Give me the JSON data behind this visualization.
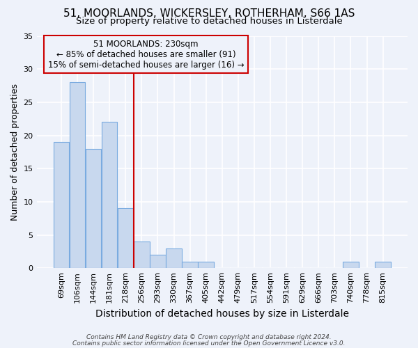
{
  "title1": "51, MOORLANDS, WICKERSLEY, ROTHERHAM, S66 1AS",
  "title2": "Size of property relative to detached houses in Listerdale",
  "xlabel": "Distribution of detached houses by size in Listerdale",
  "ylabel": "Number of detached properties",
  "footnote1": "Contains HM Land Registry data © Crown copyright and database right 2024.",
  "footnote2": "Contains public sector information licensed under the Open Government Licence v3.0.",
  "annotation_line1": "51 MOORLANDS: 230sqm",
  "annotation_line2": "← 85% of detached houses are smaller (91)",
  "annotation_line3": "15% of semi-detached houses are larger (16) →",
  "bar_labels": [
    "69sqm",
    "106sqm",
    "144sqm",
    "181sqm",
    "218sqm",
    "256sqm",
    "293sqm",
    "330sqm",
    "367sqm",
    "405sqm",
    "442sqm",
    "479sqm",
    "517sqm",
    "554sqm",
    "591sqm",
    "629sqm",
    "666sqm",
    "703sqm",
    "740sqm",
    "778sqm",
    "815sqm"
  ],
  "bar_values": [
    19,
    28,
    18,
    22,
    9,
    4,
    2,
    3,
    1,
    1,
    0,
    0,
    0,
    0,
    0,
    0,
    0,
    0,
    1,
    0,
    1
  ],
  "bar_color": "#c8d8ee",
  "bar_edge_color": "#7aabe0",
  "vline_x": 4.5,
  "vline_color": "#cc0000",
  "ylim": [
    0,
    35
  ],
  "yticks": [
    0,
    5,
    10,
    15,
    20,
    25,
    30,
    35
  ],
  "annotation_box_color": "#cc0000",
  "background_color": "#eef2fa",
  "grid_color": "#ffffff",
  "title1_fontsize": 11,
  "title2_fontsize": 9.5,
  "xlabel_fontsize": 10,
  "ylabel_fontsize": 9,
  "tick_fontsize": 8,
  "annot_fontsize": 8.5,
  "footnote_fontsize": 6.5
}
